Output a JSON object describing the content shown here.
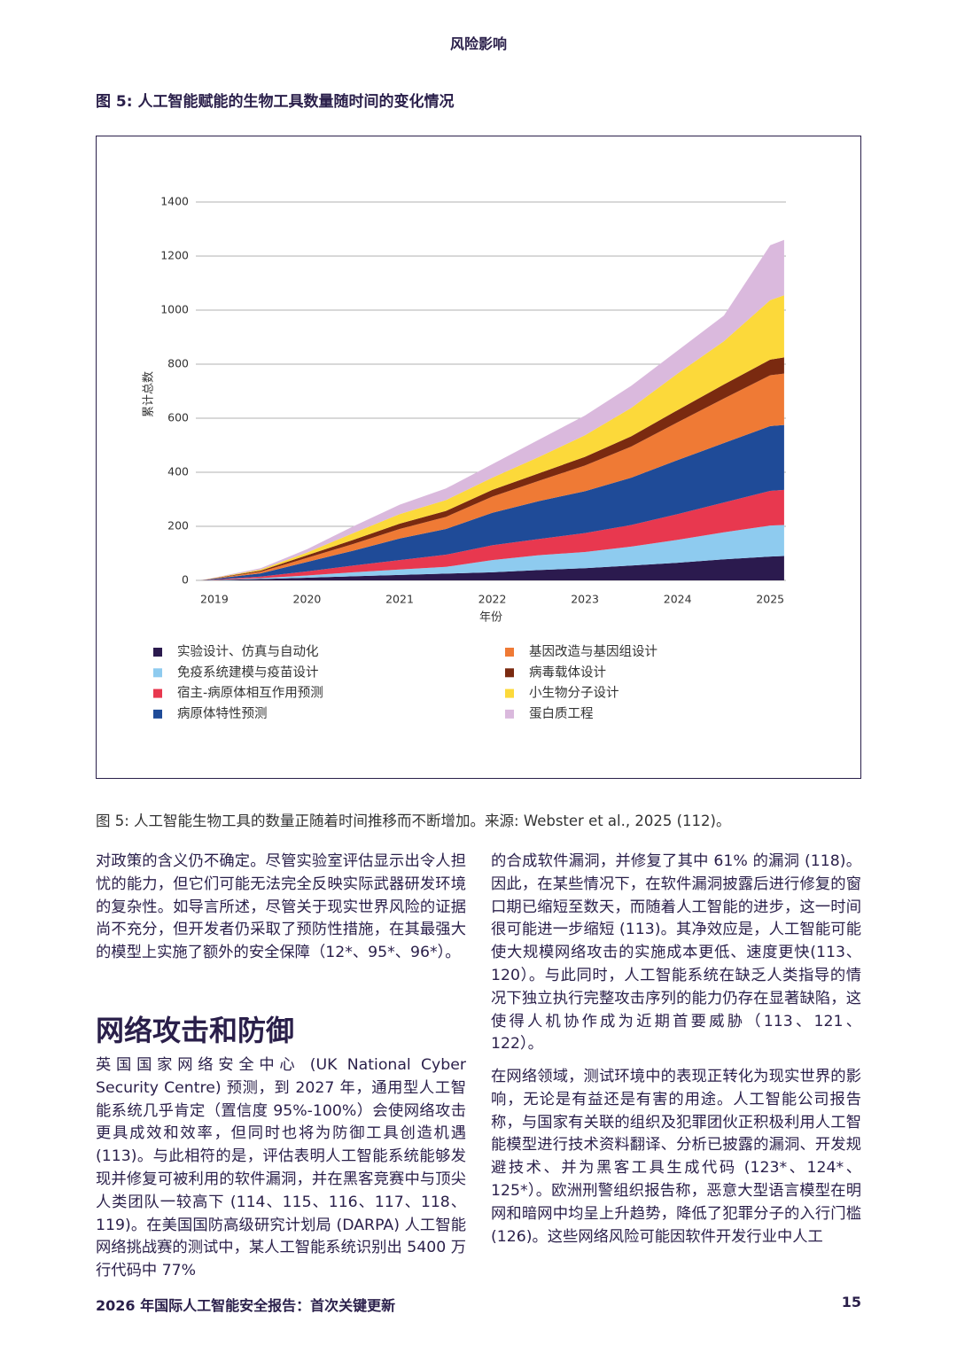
{
  "header": {
    "section": "风险影响"
  },
  "figure": {
    "title": "图 5: 人工智能赋能的生物工具数量随时间的变化情况",
    "caption": "图 5: 人工智能生物工具的数量正随着时间推移而不断增加。来源: Webster et al., 2025 (112)。"
  },
  "chart_data": {
    "type": "stacked_area",
    "y_label": "累计总数",
    "x_label": "年份",
    "x": [
      2018.85,
      2019.5,
      2020,
      2020.5,
      2021,
      2021.5,
      2022,
      2022.5,
      2023,
      2023.5,
      2024,
      2024.5,
      2025,
      2025.15
    ],
    "xlim": [
      2018.8,
      2025.17
    ],
    "xticks": [
      2019,
      2020,
      2021,
      2022,
      2023,
      2024,
      2025
    ],
    "ylim": [
      0,
      1400
    ],
    "yticks": [
      0,
      200,
      400,
      600,
      800,
      1000,
      1200,
      1400
    ],
    "grid": true,
    "series": [
      {
        "name": "实验设计、仿真与自动化",
        "color": "#2b1a4e",
        "values": [
          0,
          5,
          10,
          15,
          20,
          25,
          30,
          38,
          45,
          55,
          65,
          78,
          88,
          90
        ]
      },
      {
        "name": "免疫系统建模与疫苗设计",
        "color": "#8ecbef",
        "values": [
          0,
          3,
          8,
          15,
          20,
          25,
          45,
          55,
          60,
          70,
          85,
          100,
          115,
          115
        ]
      },
      {
        "name": "宿主-病原体相互作用预测",
        "color": "#e8384f",
        "values": [
          0,
          6,
          15,
          25,
          35,
          45,
          55,
          60,
          70,
          80,
          95,
          110,
          128,
          130
        ]
      },
      {
        "name": "病原体特性预测",
        "color": "#1f4b98",
        "values": [
          0,
          12,
          35,
          55,
          80,
          95,
          120,
          140,
          155,
          175,
          200,
          220,
          240,
          240
        ]
      },
      {
        "name": "基因改造与基因组设计",
        "color": "#ef7a35",
        "values": [
          0,
          6,
          15,
          25,
          35,
          45,
          60,
          75,
          95,
          115,
          140,
          165,
          188,
          190
        ]
      },
      {
        "name": "病毒载体设计",
        "color": "#7a2a10",
        "values": [
          0,
          4,
          10,
          15,
          20,
          22,
          25,
          28,
          32,
          38,
          45,
          52,
          58,
          60
        ]
      },
      {
        "name": "小生物分子设计",
        "color": "#fcd93a",
        "values": [
          0,
          4,
          10,
          25,
          35,
          40,
          45,
          60,
          80,
          105,
          135,
          160,
          220,
          230
        ]
      },
      {
        "name": "蛋白质工程",
        "color": "#dab9dd",
        "values": [
          0,
          5,
          12,
          25,
          35,
          43,
          50,
          64,
          73,
          82,
          85,
          95,
          203,
          205
        ]
      }
    ]
  },
  "body": {
    "left_paragraph_1": "对政策的含义仍不确定。尽管实验室评估显示出令人担忧的能力，但它们可能无法完全反映实际武器研发环境的复杂性。如导言所述，尽管关于现实世界风险的证据尚不充分，但开发者仍采取了预防性措施，在其最强大的模型上实施了额外的安全保障（12*、95*、96*）。",
    "heading": "网络攻击和防御",
    "left_paragraph_2": "英国国家网络安全中心 (UK National Cyber Security Centre) 预测，到 2027 年，通用型人工智能系统几乎肯定（置信度 95%-100%）会使网络攻击更具成效和效率，但同时也将为防御工具创造机遇 (113)。与此相符的是，评估表明人工智能系统能够发现并修复可被利用的软件漏洞，并在黑客竞赛中与顶尖人类团队一较高下 (114、115、116、117、118、119)。在美国国防高级研究计划局 (DARPA) 人工智能网络挑战赛的测试中，某人工智能系统识别出 5400 万行代码中 77%",
    "right_paragraph_1": "的合成软件漏洞，并修复了其中 61% 的漏洞 (118)。因此，在某些情况下，在软件漏洞披露后进行修复的窗口期已缩短至数天，而随着人工智能的进步，这一时间很可能进一步缩短 (113)。其净效应是，人工智能可能使大规模网络攻击的实施成本更低、速度更快(113、120）。与此同时，人工智能系统在缺乏人类指导的情况下独立执行完整攻击序列的能力仍存在显著缺陷，这使得人机协作成为近期首要威胁（113、121、122）。",
    "right_paragraph_2": "在网络领域，测试环境中的表现正转化为现实世界的影响，无论是有益还是有害的用途。人工智能公司报告称，与国家有关联的组织及犯罪团伙正积极利用人工智能模型进行技术资料翻译、分析已披露的漏洞、开发规避技术、并为黑客工具生成代码 (123*、124*、125*）。欧洲刑警组织报告称，恶意大型语言模型在明网和暗网中均呈上升趋势，降低了犯罪分子的入行门槛 (126)。这些网络风险可能因软件开发行业中人工"
  },
  "footer": {
    "report": "2026 年国际人工智能安全报告：首次关键更新",
    "page": "15"
  }
}
